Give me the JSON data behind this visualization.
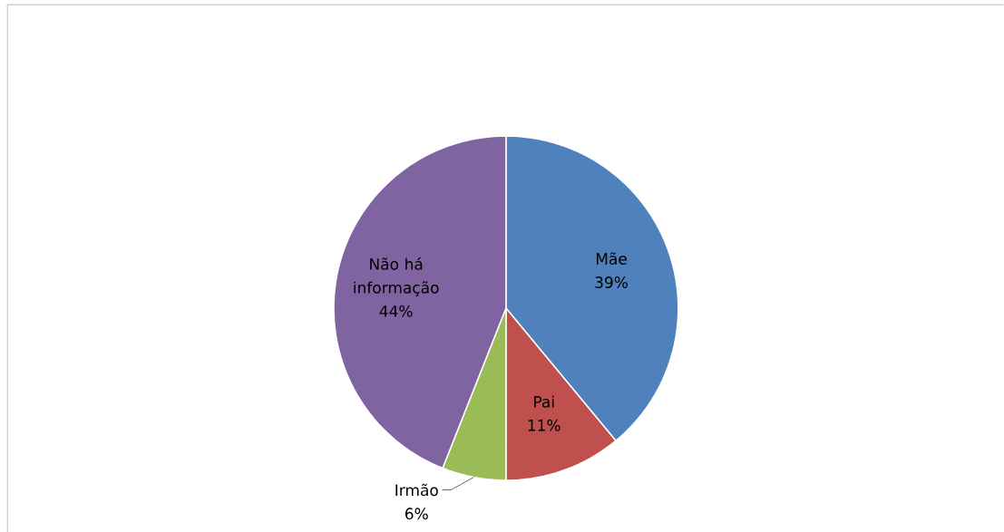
{
  "chart_data": {
    "type": "pie",
    "categories": [
      "Mãe",
      "Pai",
      "Irmão",
      "Não há informação"
    ],
    "values": [
      39,
      11,
      6,
      44
    ],
    "value_labels": [
      "39%",
      "11%",
      "6%",
      "44%"
    ],
    "colors": [
      "#4f81bd",
      "#c0504d",
      "#9bbb59",
      "#8064a2"
    ]
  }
}
